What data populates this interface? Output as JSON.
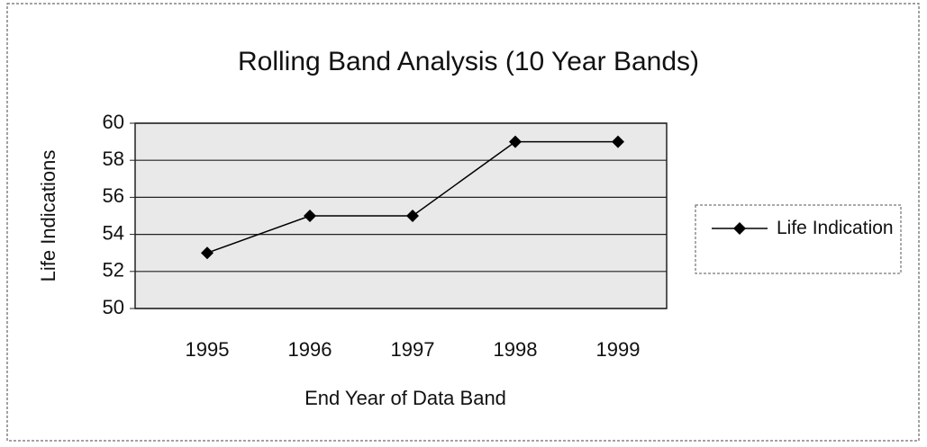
{
  "chart_data": {
    "type": "line",
    "title": "Rolling Band Analysis (10 Year Bands)",
    "x_label": "End Year of Data Band",
    "y_label": "Life Indications",
    "categories": [
      "1995",
      "1996",
      "1997",
      "1998",
      "1999"
    ],
    "series": [
      {
        "name": "Life Indication",
        "color": "#000000",
        "values": [
          53,
          55,
          55,
          59,
          59
        ]
      }
    ],
    "ylim": [
      50,
      60
    ],
    "yticks": [
      50,
      52,
      54,
      56,
      58,
      60
    ],
    "grid": true,
    "legend": "right"
  }
}
